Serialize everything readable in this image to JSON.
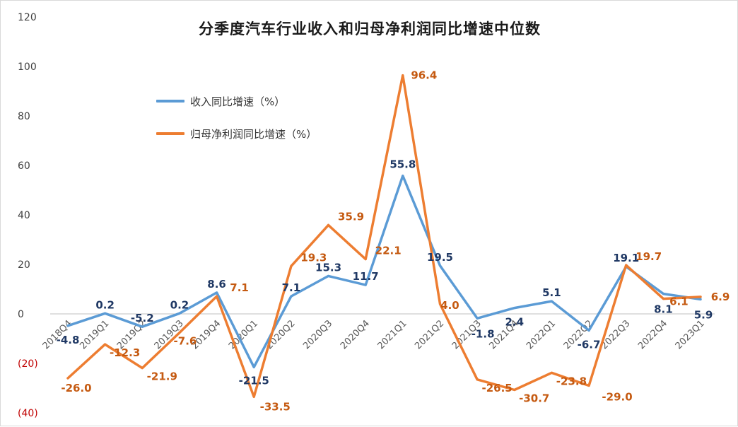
{
  "chart_data": {
    "type": "line",
    "title": "分季度汽车行业收入和归母净利润同比增速中位数",
    "xlabel": "",
    "ylabel": "",
    "ylim": [
      -40,
      120
    ],
    "yticks": [
      -40,
      -20,
      0,
      20,
      40,
      60,
      80,
      100,
      120
    ],
    "ytick_labels": [
      "(40)",
      "(20)",
      "0",
      "20",
      "40",
      "60",
      "80",
      "100",
      "120"
    ],
    "legend_position": "upper-left",
    "grid": false,
    "categories": [
      "2018Q4",
      "2019Q1",
      "2019Q2",
      "2019Q3",
      "2019Q4",
      "2020Q1",
      "2020Q2",
      "2020Q3",
      "2020Q4",
      "2021Q1",
      "2021Q2",
      "2021Q3",
      "2021Q4",
      "2022Q1",
      "2022Q2",
      "2022Q3",
      "2022Q4",
      "2023Q1"
    ],
    "series": [
      {
        "name": "收入同比增速（%）",
        "color": "#5B9BD5",
        "label_color": "#1F3864",
        "values": [
          -4.8,
          0.2,
          -5.2,
          0.2,
          8.6,
          -21.5,
          7.1,
          15.3,
          11.7,
          55.8,
          19.5,
          -1.8,
          2.4,
          5.1,
          -6.7,
          19.1,
          8.1,
          5.9
        ],
        "labels": [
          "-4.8",
          "0.2",
          "-5.2",
          "0.2",
          "8.6",
          "-21.5",
          "7.1",
          "15.3",
          "11.7",
          "55.8",
          "19.5",
          "-1.8",
          "2.4",
          "5.1",
          "-6.7",
          "19.1",
          "8.1",
          "5.9"
        ]
      },
      {
        "name": "归母净利润同比增速（%）",
        "color": "#ED7D31",
        "label_color": "#C55A11",
        "values": [
          -26.0,
          -12.3,
          -21.9,
          -7.6,
          7.1,
          -33.5,
          19.3,
          35.9,
          22.1,
          96.4,
          4.0,
          -26.5,
          -30.7,
          -23.8,
          -29.0,
          19.7,
          6.1,
          6.9
        ],
        "labels": [
          "-26.0",
          "-12.3",
          "-21.9",
          "-7.6",
          "7.1",
          "-33.5",
          "19.3",
          "35.9",
          "22.1",
          "96.4",
          "4.0",
          "-26.5",
          "-30.7",
          "-23.8",
          "-29.0",
          "19.7",
          "6.1",
          "6.9"
        ]
      }
    ]
  }
}
